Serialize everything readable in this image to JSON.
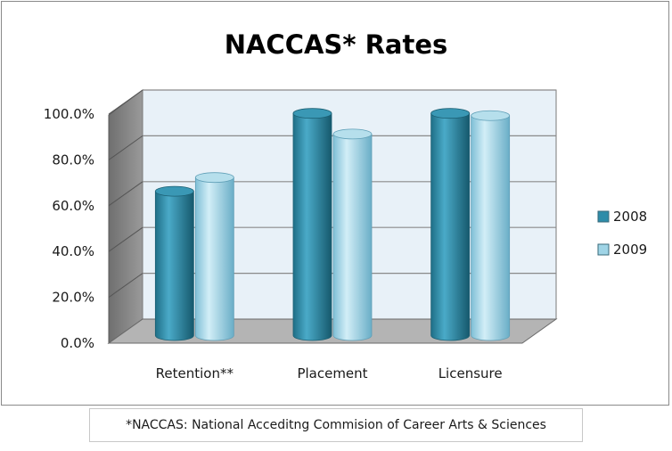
{
  "chart_data": {
    "type": "bar",
    "title": "NACCAS* Rates",
    "categories": [
      "Retention**",
      "Placement",
      "Licensure"
    ],
    "series": [
      {
        "name": "2008",
        "values": [
          63,
          97,
          97
        ],
        "color": "#2e8ca9"
      },
      {
        "name": "2009",
        "values": [
          69,
          88,
          96
        ],
        "color": "#9fd4e6"
      }
    ],
    "ylim": [
      0,
      100
    ],
    "yticks": [
      "0.0%",
      "20.0%",
      "40.0%",
      "60.0%",
      "80.0%",
      "100.0%"
    ],
    "xlabel": "",
    "ylabel": "",
    "grid": true,
    "legend": "right"
  },
  "footnote": "*NACCAS: National Acceditng Commision of Career Arts & Sciences"
}
